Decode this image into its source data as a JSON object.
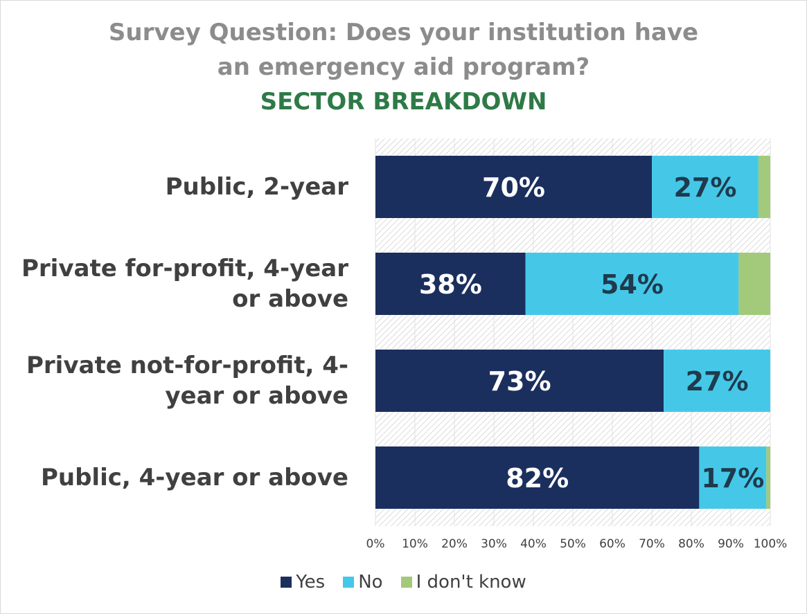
{
  "title": {
    "line1": "Survey Question: Does your institution have",
    "line2": "an emergency aid program?",
    "line3": "SECTOR BREAKDOWN"
  },
  "colors": {
    "yes": "#1b2f5e",
    "no": "#45c8e8",
    "dont_know": "#a3c97a",
    "label_on_dark": "#ffffff",
    "label_on_light": "#1f3a4d"
  },
  "chart_data": {
    "type": "bar",
    "orientation": "horizontal",
    "stacked": true,
    "title": "Survey Question: Does your institution have an emergency aid program? SECTOR BREAKDOWN",
    "categories": [
      "Public, 2-year",
      "Private for-profit, 4-year or above",
      "Private not-for-profit, 4-year or above",
      "Public, 4-year or above"
    ],
    "category_lines": [
      [
        "Public, 2-year"
      ],
      [
        "Private for-profit, 4-year",
        "or above"
      ],
      [
        "Private not-for-profit, 4-",
        "year or above"
      ],
      [
        "Public, 4-year or above"
      ]
    ],
    "series": [
      {
        "name": "Yes",
        "values": [
          70,
          38,
          73,
          82
        ],
        "labels": [
          "70%",
          "38%",
          "73%",
          "82%"
        ]
      },
      {
        "name": "No",
        "values": [
          27,
          54,
          27,
          17
        ],
        "labels": [
          "27%",
          "54%",
          "27%",
          "17%"
        ]
      },
      {
        "name": "I don't know",
        "values": [
          3,
          8,
          0.3,
          1.2
        ],
        "labels": [
          "",
          "",
          "",
          ""
        ]
      }
    ],
    "xlim": [
      0,
      100
    ],
    "xticks": [
      "0%",
      "10%",
      "20%",
      "30%",
      "40%",
      "50%",
      "60%",
      "70%",
      "80%",
      "90%",
      "100%"
    ],
    "legend_position": "bottom",
    "grid": true
  }
}
